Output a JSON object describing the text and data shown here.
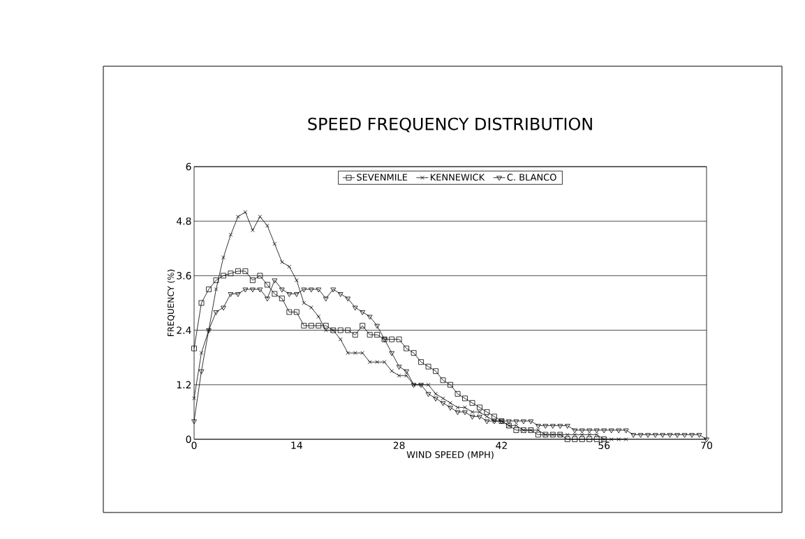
{
  "chart_data": {
    "type": "line",
    "title": "SPEED FREQUENCY DISTRIBUTION",
    "xlabel": "WIND SPEED (MPH)",
    "ylabel": "FREQUENCY (%)",
    "xlim": [
      0,
      70
    ],
    "xticks": [
      0,
      14,
      28,
      42,
      56,
      70
    ],
    "ylim": [
      0,
      6
    ],
    "yticks": [
      0,
      1.2,
      2.4,
      3.6,
      4.8,
      6
    ],
    "grid": "y",
    "legend": "top",
    "line_style": "solid",
    "series": [
      {
        "name": "SEVENMILE",
        "color": "#000000",
        "marker": "square",
        "x": [
          0,
          1,
          2,
          3,
          4,
          5,
          6,
          7,
          8,
          9,
          10,
          11,
          12,
          13,
          14,
          15,
          16,
          17,
          18,
          19,
          20,
          21,
          22,
          23,
          24,
          25,
          26,
          27,
          28,
          29,
          30,
          31,
          32,
          33,
          34,
          35,
          36,
          37,
          38,
          39,
          40,
          41,
          42,
          43,
          44,
          45,
          46,
          47,
          48,
          49,
          50,
          51,
          52,
          53,
          54,
          55,
          56
        ],
        "values": [
          2.0,
          3.0,
          3.3,
          3.5,
          3.6,
          3.65,
          3.7,
          3.7,
          3.5,
          3.6,
          3.4,
          3.2,
          3.1,
          2.8,
          2.8,
          2.5,
          2.5,
          2.5,
          2.5,
          2.4,
          2.4,
          2.4,
          2.3,
          2.5,
          2.3,
          2.3,
          2.2,
          2.2,
          2.2,
          2.0,
          1.9,
          1.7,
          1.6,
          1.5,
          1.3,
          1.2,
          1.0,
          0.9,
          0.8,
          0.7,
          0.6,
          0.5,
          0.4,
          0.3,
          0.2,
          0.2,
          0.2,
          0.1,
          0.1,
          0.1,
          0.1,
          0.0,
          0.0,
          0.0,
          0.0,
          0.0,
          0.0
        ]
      },
      {
        "name": "KENNEWICK",
        "color": "#000000",
        "marker": "cross",
        "x": [
          0,
          1,
          2,
          3,
          4,
          5,
          6,
          7,
          8,
          9,
          10,
          11,
          12,
          13,
          14,
          15,
          16,
          17,
          18,
          19,
          20,
          21,
          22,
          23,
          24,
          25,
          26,
          27,
          28,
          29,
          30,
          31,
          32,
          33,
          34,
          35,
          36,
          37,
          38,
          39,
          40,
          41,
          42,
          43,
          44,
          45,
          46,
          47,
          48,
          49,
          50,
          51,
          52,
          53,
          54,
          55,
          56,
          57,
          58,
          59
        ],
        "values": [
          0.9,
          1.9,
          2.4,
          3.3,
          4.0,
          4.5,
          4.9,
          5.0,
          4.6,
          4.9,
          4.7,
          4.3,
          3.9,
          3.8,
          3.5,
          3.0,
          2.9,
          2.7,
          2.4,
          2.4,
          2.2,
          1.9,
          1.9,
          1.9,
          1.7,
          1.7,
          1.7,
          1.5,
          1.4,
          1.4,
          1.2,
          1.2,
          1.2,
          1.0,
          0.9,
          0.8,
          0.7,
          0.7,
          0.6,
          0.6,
          0.5,
          0.4,
          0.4,
          0.3,
          0.3,
          0.2,
          0.2,
          0.2,
          0.1,
          0.1,
          0.1,
          0.1,
          0.1,
          0.1,
          0.1,
          0.1,
          0.0,
          0.0,
          0.0,
          0.0
        ]
      },
      {
        "name": "C. BLANCO",
        "color": "#000000",
        "marker": "triangle",
        "x": [
          0,
          1,
          2,
          3,
          4,
          5,
          6,
          7,
          8,
          9,
          10,
          11,
          12,
          13,
          14,
          15,
          16,
          17,
          18,
          19,
          20,
          21,
          22,
          23,
          24,
          25,
          26,
          27,
          28,
          29,
          30,
          31,
          32,
          33,
          34,
          35,
          36,
          37,
          38,
          39,
          40,
          41,
          42,
          43,
          44,
          45,
          46,
          47,
          48,
          49,
          50,
          51,
          52,
          53,
          54,
          55,
          56,
          57,
          58,
          59,
          60,
          61,
          62,
          63,
          64,
          65,
          66,
          67,
          68,
          69,
          70
        ],
        "values": [
          0.4,
          1.5,
          2.4,
          2.8,
          2.9,
          3.2,
          3.2,
          3.3,
          3.3,
          3.3,
          3.1,
          3.5,
          3.3,
          3.2,
          3.2,
          3.3,
          3.3,
          3.3,
          3.1,
          3.3,
          3.2,
          3.1,
          2.9,
          2.8,
          2.7,
          2.5,
          2.2,
          1.9,
          1.6,
          1.5,
          1.2,
          1.2,
          1.0,
          0.9,
          0.8,
          0.7,
          0.6,
          0.6,
          0.5,
          0.5,
          0.4,
          0.4,
          0.4,
          0.4,
          0.4,
          0.4,
          0.4,
          0.3,
          0.3,
          0.3,
          0.3,
          0.3,
          0.2,
          0.2,
          0.2,
          0.2,
          0.2,
          0.2,
          0.2,
          0.2,
          0.1,
          0.1,
          0.1,
          0.1,
          0.1,
          0.1,
          0.1,
          0.1,
          0.1,
          0.1,
          0.0
        ]
      }
    ]
  }
}
